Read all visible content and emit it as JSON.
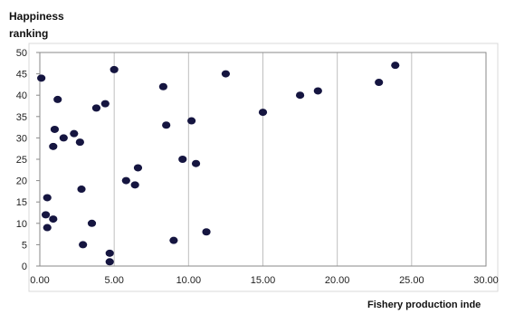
{
  "chart_data": {
    "type": "scatter",
    "ylabel_lines": [
      "Happiness",
      "ranking"
    ],
    "xlabel": "Fishery production inde",
    "xlim": [
      0,
      30
    ],
    "ylim": [
      0,
      50
    ],
    "x_ticks": [
      "0.00",
      "5.00",
      "10.00",
      "15.00",
      "20.00",
      "25.00",
      "30.00"
    ],
    "y_ticks": [
      "0",
      "5",
      "10",
      "15",
      "20",
      "25",
      "30",
      "35",
      "40",
      "45",
      "50"
    ],
    "grid": "vertical",
    "marker_color": "#151540",
    "points": [
      {
        "x": 0.1,
        "y": 44
      },
      {
        "x": 0.4,
        "y": 12
      },
      {
        "x": 0.5,
        "y": 16
      },
      {
        "x": 0.5,
        "y": 9
      },
      {
        "x": 0.9,
        "y": 11
      },
      {
        "x": 0.9,
        "y": 28
      },
      {
        "x": 1.0,
        "y": 32
      },
      {
        "x": 1.2,
        "y": 39
      },
      {
        "x": 1.6,
        "y": 30
      },
      {
        "x": 2.3,
        "y": 31
      },
      {
        "x": 2.7,
        "y": 29
      },
      {
        "x": 2.8,
        "y": 18
      },
      {
        "x": 2.9,
        "y": 5
      },
      {
        "x": 3.5,
        "y": 10
      },
      {
        "x": 3.8,
        "y": 37
      },
      {
        "x": 4.4,
        "y": 38
      },
      {
        "x": 4.7,
        "y": 3
      },
      {
        "x": 4.7,
        "y": 1
      },
      {
        "x": 5.0,
        "y": 46
      },
      {
        "x": 5.8,
        "y": 20
      },
      {
        "x": 6.4,
        "y": 19
      },
      {
        "x": 6.6,
        "y": 23
      },
      {
        "x": 8.3,
        "y": 42
      },
      {
        "x": 8.5,
        "y": 33
      },
      {
        "x": 9.0,
        "y": 6
      },
      {
        "x": 9.6,
        "y": 25
      },
      {
        "x": 10.2,
        "y": 34
      },
      {
        "x": 10.5,
        "y": 24
      },
      {
        "x": 11.2,
        "y": 8
      },
      {
        "x": 12.5,
        "y": 45
      },
      {
        "x": 15.0,
        "y": 36
      },
      {
        "x": 17.5,
        "y": 40
      },
      {
        "x": 18.7,
        "y": 41
      },
      {
        "x": 22.8,
        "y": 43
      },
      {
        "x": 23.9,
        "y": 47
      }
    ]
  }
}
